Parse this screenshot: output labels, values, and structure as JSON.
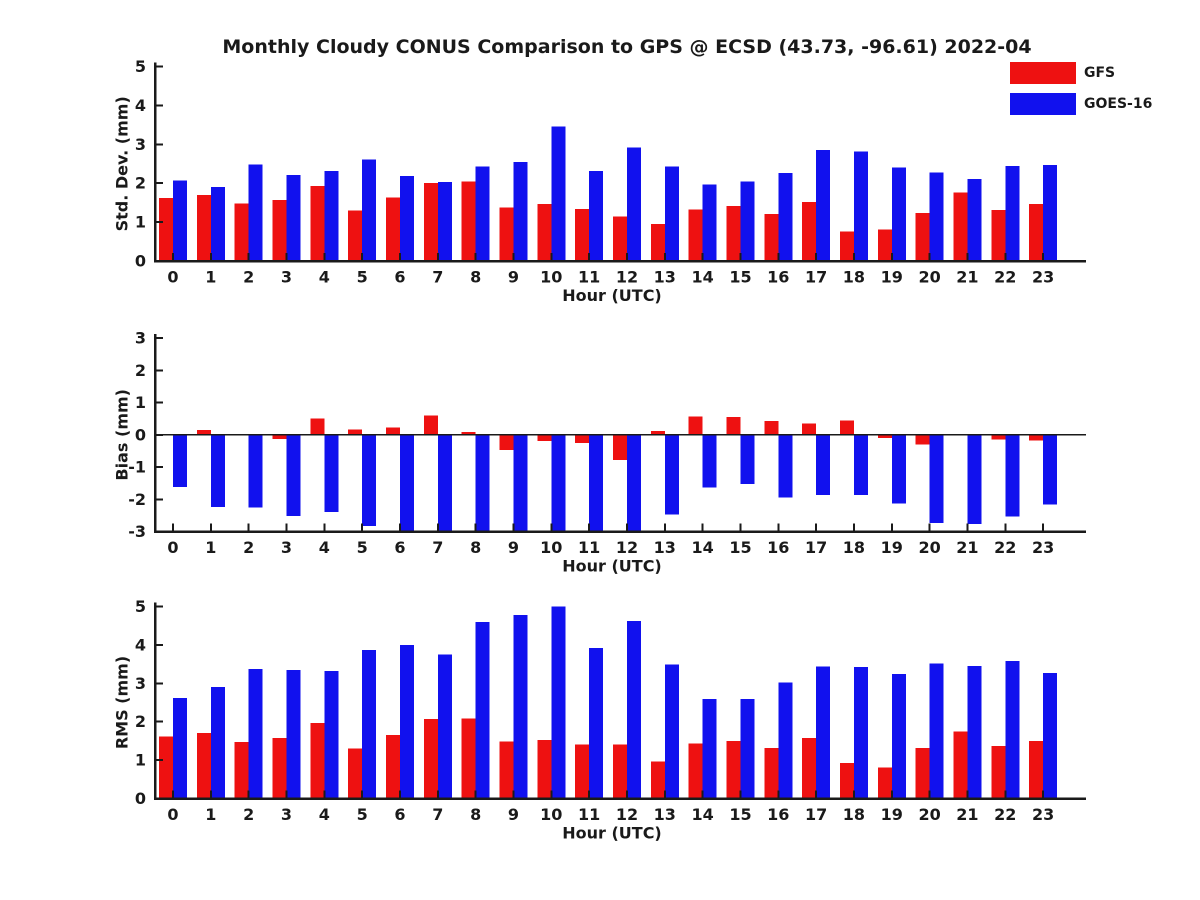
{
  "legend": {
    "position": "top-right",
    "items": [
      {
        "label": "GFS",
        "color": "#ee1111"
      },
      {
        "label": "GOES-16",
        "color": "#1111ee"
      }
    ]
  },
  "colors": {
    "gfs": "#ee1111",
    "goes16": "#1111ee",
    "axis": "#1a1a1a",
    "background": "#ffffff"
  },
  "chart_data": [
    {
      "id": "std_dev",
      "type": "bar",
      "title": "Monthly Cloudy CONUS Comparison to GPS @ ECSD (43.73, -96.61) 2022-04",
      "xlabel": "Hour (UTC)",
      "ylabel": "Std. Dev. (mm)",
      "ylim": [
        0,
        5
      ],
      "yticks": [
        0,
        1,
        2,
        3,
        4,
        5
      ],
      "grid": false,
      "categories": [
        "0",
        "1",
        "2",
        "3",
        "4",
        "5",
        "6",
        "7",
        "8",
        "9",
        "10",
        "11",
        "12",
        "13",
        "14",
        "15",
        "16",
        "17",
        "18",
        "19",
        "20",
        "21",
        "22",
        "23"
      ],
      "series": [
        {
          "name": "GFS",
          "color": "#ee1111",
          "values": [
            1.62,
            1.7,
            1.48,
            1.57,
            1.93,
            1.3,
            1.63,
            2.0,
            2.05,
            1.38,
            1.47,
            1.34,
            1.15,
            0.95,
            1.32,
            1.41,
            1.21,
            1.52,
            0.76,
            0.81,
            1.23,
            1.76,
            1.31,
            1.46
          ]
        },
        {
          "name": "GOES-16",
          "color": "#1111ee",
          "values": [
            2.07,
            1.9,
            2.48,
            2.21,
            2.32,
            2.61,
            2.18,
            2.03,
            2.43,
            2.54,
            3.46,
            2.31,
            2.92,
            2.43,
            1.97,
            2.04,
            2.26,
            2.86,
            2.81,
            2.4,
            2.27,
            2.11,
            2.44,
            2.47
          ]
        }
      ]
    },
    {
      "id": "bias",
      "type": "bar",
      "title": "",
      "xlabel": "Hour (UTC)",
      "ylabel": "Bias (mm)",
      "ylim": [
        -3,
        3
      ],
      "yticks": [
        -3,
        -2,
        -1,
        0,
        1,
        2,
        3
      ],
      "zero_line": true,
      "grid": false,
      "categories": [
        "0",
        "1",
        "2",
        "3",
        "4",
        "5",
        "6",
        "7",
        "8",
        "9",
        "10",
        "11",
        "12",
        "13",
        "14",
        "15",
        "16",
        "17",
        "18",
        "19",
        "20",
        "21",
        "22",
        "23"
      ],
      "series": [
        {
          "name": "GFS",
          "color": "#ee1111",
          "values": [
            0.0,
            0.15,
            0.0,
            -0.13,
            0.5,
            0.16,
            0.22,
            0.6,
            0.08,
            -0.48,
            -0.2,
            -0.26,
            -0.78,
            0.11,
            0.57,
            0.55,
            0.43,
            0.35,
            0.44,
            -0.1,
            -0.3,
            0.0,
            -0.15,
            -0.18
          ]
        },
        {
          "name": "GOES-16",
          "color": "#1111ee",
          "values": [
            -1.62,
            -2.24,
            -2.26,
            -2.52,
            -2.39,
            -2.83,
            -3.0,
            -3.0,
            -3.0,
            -3.0,
            -3.0,
            -3.0,
            -3.0,
            -2.47,
            -1.64,
            -1.52,
            -1.95,
            -1.87,
            -1.87,
            -2.13,
            -2.73,
            -2.76,
            -2.53,
            -2.16
          ]
        }
      ]
    },
    {
      "id": "rms",
      "type": "bar",
      "title": "",
      "xlabel": "Hour (UTC)",
      "ylabel": "RMS (mm)",
      "ylim": [
        0,
        5
      ],
      "yticks": [
        0,
        1,
        2,
        3,
        4,
        5
      ],
      "grid": false,
      "categories": [
        "0",
        "1",
        "2",
        "3",
        "4",
        "5",
        "6",
        "7",
        "8",
        "9",
        "10",
        "11",
        "12",
        "13",
        "14",
        "15",
        "16",
        "17",
        "18",
        "19",
        "20",
        "21",
        "22",
        "23"
      ],
      "series": [
        {
          "name": "GFS",
          "color": "#ee1111",
          "values": [
            1.62,
            1.7,
            1.47,
            1.57,
            1.97,
            1.3,
            1.65,
            2.07,
            2.08,
            1.48,
            1.52,
            1.4,
            1.4,
            0.96,
            1.43,
            1.5,
            1.31,
            1.58,
            0.92,
            0.81,
            1.31,
            1.75,
            1.37,
            1.5
          ]
        },
        {
          "name": "GOES-16",
          "color": "#1111ee",
          "values": [
            2.62,
            2.9,
            3.37,
            3.34,
            3.32,
            3.87,
            4.0,
            3.75,
            4.6,
            4.78,
            5.0,
            3.92,
            4.62,
            3.49,
            2.59,
            2.59,
            3.02,
            3.44,
            3.42,
            3.24,
            3.52,
            3.45,
            3.58,
            3.27
          ]
        }
      ]
    }
  ]
}
